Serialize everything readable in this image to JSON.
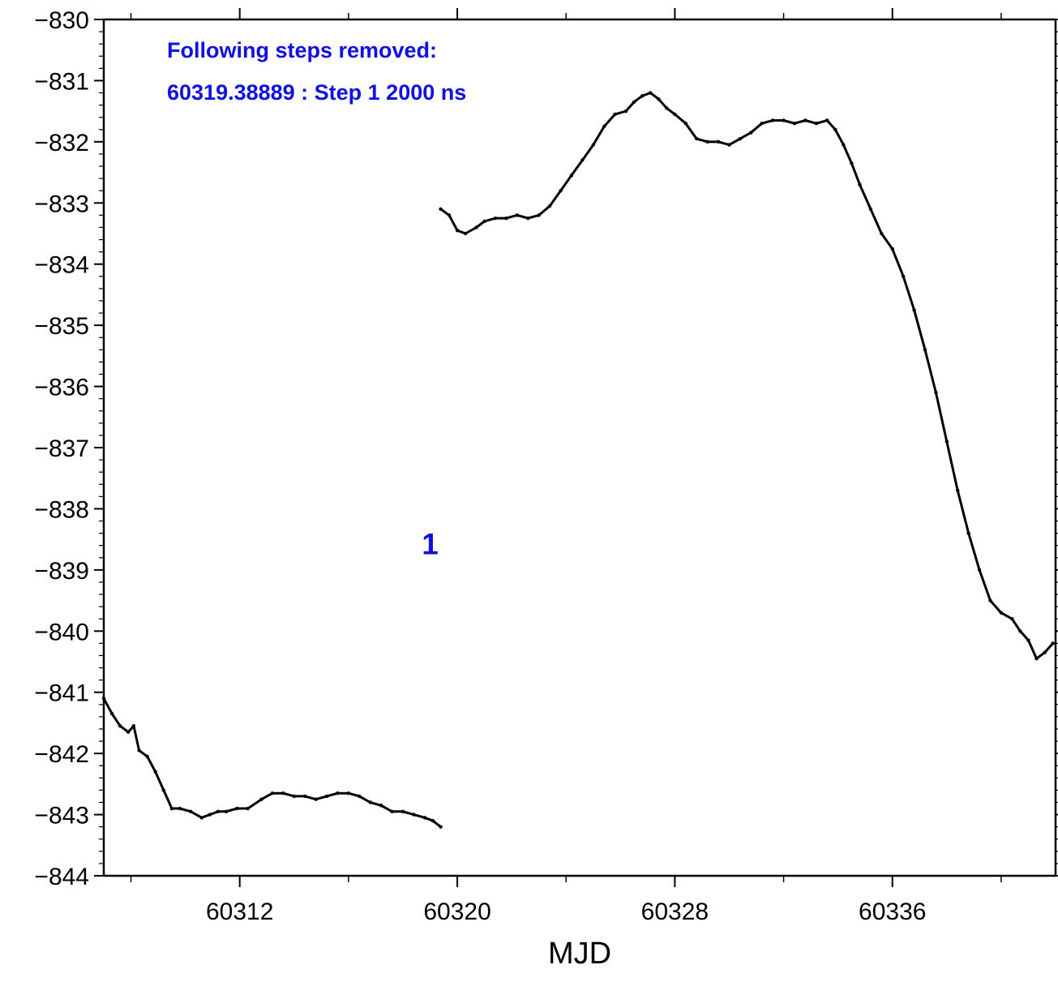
{
  "chart_data": {
    "type": "scatter",
    "title": "",
    "xlabel": "MJD",
    "ylabel": "",
    "xlim": [
      60307.0,
      60342.0
    ],
    "ylim": [
      -844,
      -830
    ],
    "x_ticks": [
      60312,
      60320,
      60328,
      60336
    ],
    "x_tick_labels": [
      "60312",
      "60320",
      "60328",
      "60336"
    ],
    "x_minor_step": 4,
    "y_ticks": [
      -830,
      -831,
      -832,
      -833,
      -834,
      -835,
      -836,
      -837,
      -838,
      -839,
      -840,
      -841,
      -842,
      -843,
      -844
    ],
    "y_tick_labels": [
      "−830",
      "−831",
      "−832",
      "−833",
      "−834",
      "−835",
      "−836",
      "−837",
      "−838",
      "−839",
      "−840",
      "−841",
      "−842",
      "−843",
      "−844"
    ],
    "y_minor_step": 0.2,
    "grid": false,
    "color": "#000000",
    "series": [
      {
        "x": [
          60307.0,
          60307.3,
          60307.6,
          60307.9,
          60308.1,
          60308.3,
          60308.6,
          60308.9,
          60309.2,
          60309.5,
          60309.8,
          60310.2,
          60310.6,
          60310.9,
          60311.2,
          60311.5,
          60311.9,
          60312.3,
          60312.8,
          60313.2,
          60313.6,
          60314.0,
          60314.4,
          60314.8,
          60315.2,
          60315.6,
          60316.0,
          60316.4,
          60316.8,
          60317.2,
          60317.6,
          60318.0,
          60318.4,
          60318.8,
          60319.1,
          60319.39
        ],
        "y": [
          -841.1,
          -841.35,
          -841.55,
          -841.65,
          -841.55,
          -841.95,
          -842.05,
          -842.3,
          -842.6,
          -842.9,
          -842.9,
          -842.95,
          -843.05,
          -843.0,
          -842.95,
          -842.95,
          -842.9,
          -842.9,
          -842.75,
          -842.65,
          -842.65,
          -842.7,
          -842.7,
          -842.75,
          -842.7,
          -842.65,
          -842.65,
          -842.7,
          -842.8,
          -842.85,
          -842.95,
          -842.95,
          -843.0,
          -843.05,
          -843.1,
          -843.2
        ]
      },
      {
        "x": [
          60319.39,
          60319.7,
          60320.0,
          60320.3,
          60320.7,
          60321.0,
          60321.4,
          60321.8,
          60322.2,
          60322.6,
          60323.0,
          60323.4,
          60323.8,
          60324.2,
          60324.6,
          60325.0,
          60325.4,
          60325.8,
          60326.2,
          60326.5,
          60326.8,
          60327.1,
          60327.4,
          60327.7,
          60328.0,
          60328.4,
          60328.8,
          60329.2,
          60329.6,
          60330.0,
          60330.4,
          60330.8,
          60331.2,
          60331.6,
          60332.0,
          60332.4,
          60332.8,
          60333.2,
          60333.6,
          60333.9,
          60334.2,
          60334.5,
          60334.8,
          60335.2,
          60335.6,
          60336.0,
          60336.4,
          60336.8,
          60337.2,
          60337.6,
          60338.0,
          60338.4,
          60338.8,
          60339.2,
          60339.6,
          60340.0,
          60340.4,
          60340.7,
          60341.0,
          60341.3,
          60341.6,
          60341.9
        ],
        "y": [
          -833.1,
          -833.2,
          -833.45,
          -833.5,
          -833.4,
          -833.3,
          -833.25,
          -833.25,
          -833.2,
          -833.25,
          -833.2,
          -833.05,
          -832.8,
          -832.55,
          -832.3,
          -832.05,
          -831.75,
          -831.55,
          -831.5,
          -831.35,
          -831.25,
          -831.2,
          -831.3,
          -831.45,
          -831.55,
          -831.7,
          -831.95,
          -832.0,
          -832.0,
          -832.05,
          -831.95,
          -831.85,
          -831.7,
          -831.65,
          -831.65,
          -831.7,
          -831.65,
          -831.7,
          -831.65,
          -831.8,
          -832.05,
          -832.35,
          -832.7,
          -833.1,
          -833.5,
          -833.75,
          -834.2,
          -834.75,
          -835.4,
          -836.1,
          -836.9,
          -837.7,
          -838.4,
          -839.0,
          -839.5,
          -839.7,
          -839.8,
          -840.0,
          -840.15,
          -840.45,
          -840.35,
          -840.2
        ]
      }
    ],
    "annotations": {
      "line1": "Following steps removed:",
      "line2": "60319.38889 : Step 1 2000 ns",
      "step_label": "1",
      "step_label_x": 60319.0,
      "step_label_y": -838.4,
      "color": "#1010e0"
    }
  }
}
